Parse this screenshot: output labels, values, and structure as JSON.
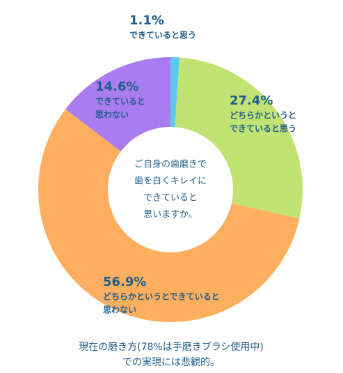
{
  "chart_data": {
    "type": "donut",
    "categories": [
      [
        "できていると思う"
      ],
      [
        "どちらかというと",
        "できていると思う"
      ],
      [
        "どちらかというとできていると",
        "思わない"
      ],
      [
        "できていると",
        "思わない"
      ]
    ],
    "values": [
      1.1,
      27.4,
      56.9,
      14.6
    ],
    "value_labels": [
      "1.1%",
      "27.4%",
      "56.9%",
      "14.6%"
    ],
    "colors": [
      "#5cc9ea",
      "#c1e374",
      "#fdae5f",
      "#a97df0"
    ],
    "center_text": [
      "ご自身の歯磨きで",
      "歯を白くキレイに",
      "できていると",
      "思いますか。"
    ],
    "caption": [
      "現在の磨き方(78%は手磨きブラシ使用中)",
      "での実現には悲観的。"
    ]
  }
}
